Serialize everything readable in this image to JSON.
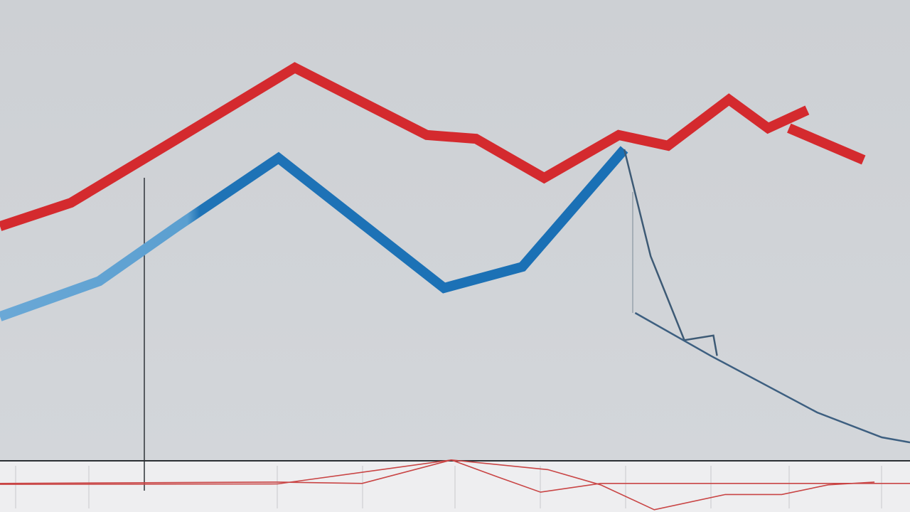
{
  "chart_data": {
    "type": "line",
    "xlim": [
      0,
      100
    ],
    "ylim": [
      -11.1,
      100
    ],
    "series": [
      {
        "color": "#d42a2e",
        "width": 14,
        "x": [
          0,
          7.8,
          19.5,
          32.4,
          46.9,
          52.3,
          59.8,
          68.0,
          73.4,
          80.1,
          84.4,
          88.7,
          null,
          86.7,
          94.9
        ],
        "values": [
          50.9,
          56.0,
          69.9,
          85.3,
          70.7,
          69.9,
          61.4,
          70.7,
          68.4,
          78.4,
          72.2,
          76.1,
          null,
          72.2,
          65.3
        ]
      },
      {
        "color": "#2a7dbd",
        "width": 14,
        "x": [
          0,
          10.9,
          19.5,
          30.6,
          48.8,
          57.4,
          68.6
        ],
        "values": [
          31.3,
          39.0,
          50.9,
          65.7,
          37.5,
          42.1,
          67.6
        ]
      },
      {
        "color": "#3d5a75",
        "width": 2.5,
        "x": [
          68.6,
          71.5,
          75.2,
          78.4,
          78.8
        ],
        "values": [
          67.6,
          44.4,
          26.2,
          27.2,
          22.8
        ]
      },
      {
        "color": "#3d5f80",
        "width": 2.5,
        "x": [
          69.8,
          78.1,
          89.8,
          96.9,
          100
        ],
        "values": [
          32.1,
          22.8,
          10.5,
          5.1,
          4.0
        ]
      },
      {
        "color": "#c94545",
        "width": 1.6,
        "x": [
          0,
          30.5,
          39.8,
          49.6,
          60.2,
          66.0,
          71.9,
          79.7,
          85.9,
          91.0,
          96.1
        ],
        "values": [
          -4.9,
          -4.6,
          -4.9,
          0.2,
          -1.9,
          -5.2,
          -10.6,
          -7.3,
          -7.3,
          -5.2,
          -4.6
        ]
      },
      {
        "color": "#c94545",
        "width": 1.6,
        "x": [
          0,
          30.5,
          49.6,
          54.7,
          59.4,
          66.0,
          100
        ],
        "values": [
          -5.1,
          -5.0,
          0.2,
          -3.5,
          -6.8,
          -4.9,
          -4.9
        ]
      }
    ]
  }
}
